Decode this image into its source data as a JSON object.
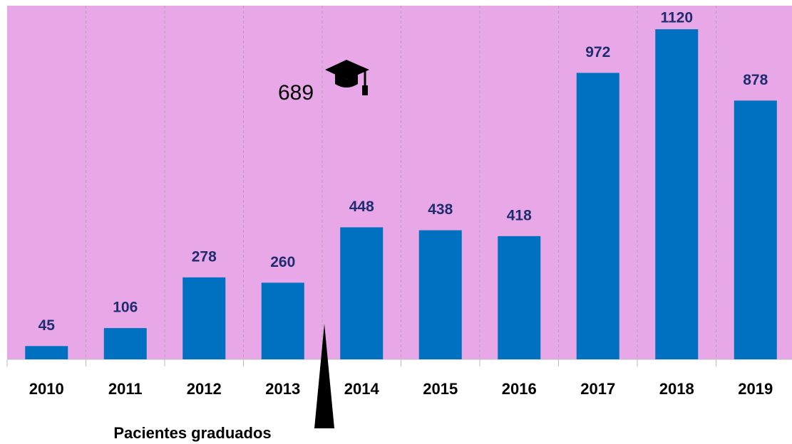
{
  "chart_data": {
    "type": "bar",
    "categories": [
      "2010",
      "2011",
      "2012",
      "2013",
      "2014",
      "2015",
      "2016",
      "2017",
      "2018",
      "2019"
    ],
    "values": [
      45,
      106,
      278,
      260,
      448,
      438,
      418,
      972,
      1120,
      878
    ],
    "color": "#0070c0",
    "ylim": [
      0,
      1200
    ],
    "x_label": "Pacientes graduados",
    "annotation": "689"
  }
}
